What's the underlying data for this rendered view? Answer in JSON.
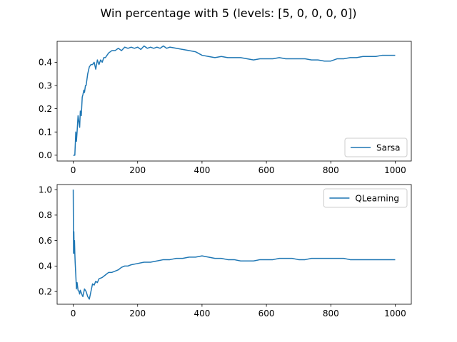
{
  "figure": {
    "title": "Win percentage with 5 (levels: [5, 0, 0, 0, 0])"
  },
  "colors": {
    "series": "#1f77b4",
    "axes": "#000000",
    "legend_border": "#cccccc"
  },
  "chart_data": [
    {
      "type": "line",
      "title": "",
      "xlabel": "",
      "ylabel": "",
      "xlim": [
        -50,
        1050
      ],
      "ylim": [
        -0.025,
        0.49
      ],
      "xticks": [
        0,
        200,
        400,
        600,
        800,
        1000
      ],
      "xtick_labels": [
        "0",
        "200",
        "400",
        "600",
        "800",
        "1000"
      ],
      "yticks": [
        0.0,
        0.1,
        0.2,
        0.3,
        0.4
      ],
      "ytick_labels": [
        "0.0",
        "0.1",
        "0.2",
        "0.3",
        "0.4"
      ],
      "grid": false,
      "legend_position": "lower-right",
      "series": [
        {
          "name": "Sarsa",
          "x": [
            0,
            5,
            8,
            10,
            12,
            15,
            18,
            20,
            22,
            25,
            28,
            30,
            33,
            35,
            38,
            40,
            45,
            50,
            55,
            60,
            65,
            70,
            75,
            80,
            85,
            90,
            95,
            100,
            110,
            120,
            130,
            140,
            150,
            160,
            170,
            180,
            190,
            200,
            210,
            220,
            230,
            240,
            250,
            260,
            270,
            280,
            290,
            300,
            320,
            340,
            360,
            380,
            400,
            420,
            440,
            460,
            480,
            500,
            520,
            540,
            560,
            580,
            600,
            620,
            640,
            660,
            680,
            700,
            720,
            740,
            760,
            780,
            800,
            820,
            840,
            860,
            880,
            900,
            920,
            940,
            960,
            980,
            1000
          ],
          "values": [
            0.0,
            0.0,
            0.1,
            0.06,
            0.1,
            0.17,
            0.14,
            0.12,
            0.19,
            0.17,
            0.25,
            0.26,
            0.28,
            0.27,
            0.3,
            0.3,
            0.35,
            0.38,
            0.39,
            0.39,
            0.4,
            0.37,
            0.41,
            0.39,
            0.41,
            0.4,
            0.42,
            0.42,
            0.44,
            0.45,
            0.45,
            0.46,
            0.45,
            0.465,
            0.46,
            0.465,
            0.46,
            0.465,
            0.455,
            0.47,
            0.46,
            0.465,
            0.46,
            0.465,
            0.46,
            0.47,
            0.46,
            0.465,
            0.46,
            0.455,
            0.45,
            0.445,
            0.43,
            0.425,
            0.42,
            0.425,
            0.42,
            0.42,
            0.42,
            0.415,
            0.41,
            0.415,
            0.415,
            0.415,
            0.42,
            0.415,
            0.415,
            0.415,
            0.415,
            0.41,
            0.41,
            0.405,
            0.405,
            0.415,
            0.415,
            0.42,
            0.42,
            0.425,
            0.425,
            0.425,
            0.43,
            0.43,
            0.43
          ]
        }
      ]
    },
    {
      "type": "line",
      "title": "",
      "xlabel": "",
      "ylabel": "",
      "xlim": [
        -50,
        1050
      ],
      "ylim": [
        0.1,
        1.04
      ],
      "xticks": [
        0,
        200,
        400,
        600,
        800,
        1000
      ],
      "xtick_labels": [
        "0",
        "200",
        "400",
        "600",
        "800",
        "1000"
      ],
      "yticks": [
        0.2,
        0.4,
        0.6,
        0.8,
        1.0
      ],
      "ytick_labels": [
        "0.2",
        "0.4",
        "0.6",
        "0.8",
        "1.0"
      ],
      "grid": false,
      "legend_position": "upper-right",
      "series": [
        {
          "name": "QLearning",
          "x": [
            0,
            1,
            2,
            3,
            4,
            5,
            6,
            8,
            10,
            12,
            15,
            18,
            20,
            22,
            25,
            28,
            30,
            35,
            40,
            45,
            50,
            55,
            60,
            65,
            70,
            75,
            80,
            90,
            100,
            110,
            120,
            130,
            140,
            150,
            160,
            170,
            180,
            200,
            220,
            240,
            260,
            280,
            300,
            320,
            340,
            360,
            380,
            400,
            420,
            440,
            460,
            480,
            500,
            520,
            540,
            560,
            580,
            600,
            620,
            640,
            660,
            680,
            700,
            720,
            740,
            760,
            780,
            800,
            820,
            840,
            860,
            880,
            900,
            920,
            940,
            960,
            980,
            1000
          ],
          "values": [
            1.0,
            0.5,
            0.67,
            0.5,
            0.6,
            0.5,
            0.43,
            0.33,
            0.22,
            0.27,
            0.21,
            0.2,
            0.18,
            0.21,
            0.19,
            0.17,
            0.16,
            0.22,
            0.2,
            0.16,
            0.14,
            0.2,
            0.26,
            0.25,
            0.28,
            0.27,
            0.3,
            0.31,
            0.33,
            0.35,
            0.35,
            0.36,
            0.37,
            0.39,
            0.4,
            0.4,
            0.41,
            0.42,
            0.43,
            0.43,
            0.44,
            0.45,
            0.45,
            0.46,
            0.46,
            0.47,
            0.47,
            0.48,
            0.47,
            0.46,
            0.46,
            0.45,
            0.45,
            0.44,
            0.44,
            0.44,
            0.45,
            0.45,
            0.45,
            0.46,
            0.46,
            0.46,
            0.45,
            0.45,
            0.46,
            0.46,
            0.46,
            0.46,
            0.46,
            0.46,
            0.45,
            0.45,
            0.45,
            0.45,
            0.45,
            0.45,
            0.45,
            0.45
          ]
        }
      ]
    }
  ]
}
